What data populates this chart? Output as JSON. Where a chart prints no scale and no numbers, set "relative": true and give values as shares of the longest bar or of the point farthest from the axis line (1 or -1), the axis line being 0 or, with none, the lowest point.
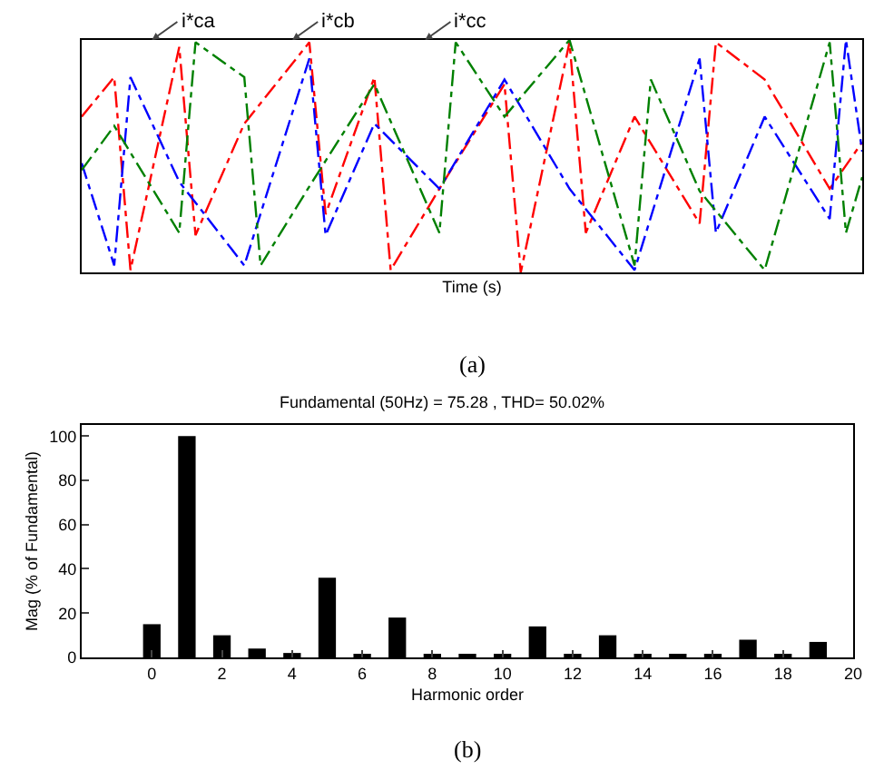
{
  "chart_data": [
    {
      "type": "line",
      "relative": true,
      "xlabel": "Time (s)",
      "categories": [
        null,
        null,
        null,
        null,
        null,
        null,
        null,
        null,
        null,
        null,
        null,
        null,
        null,
        null,
        null,
        null,
        null,
        null,
        null,
        null,
        null,
        null,
        null,
        null,
        null,
        null,
        null,
        null,
        null,
        null,
        null,
        null,
        null,
        null,
        null,
        null,
        null,
        null,
        null,
        null,
        null,
        null,
        null,
        null,
        null,
        null,
        null,
        null,
        null
      ],
      "line_style": "dashed",
      "marker": "none",
      "grid": false,
      "series": [
        {
          "color": "#ff0000",
          "values": [
            0.67,
            null,
            0.84,
            0.01,
            null,
            null,
            0.97,
            0.16,
            null,
            null,
            0.64,
            null,
            null,
            null,
            0.99,
            0.25,
            null,
            null,
            0.84,
            0.01,
            null,
            null,
            0.36,
            null,
            null,
            null,
            0.81,
            0,
            null,
            null,
            0.99,
            0.17,
            null,
            null,
            0.67,
            null,
            null,
            null,
            0.21,
            0.99,
            null,
            null,
            0.83,
            null,
            null,
            null,
            0.36,
            null,
            0.56
          ]
        },
        {
          "color": "#0000ff",
          "values": [
            0.47,
            null,
            0.03,
            0.84,
            null,
            null,
            0.39,
            null,
            null,
            null,
            0.03,
            null,
            null,
            null,
            0.92,
            0.16,
            null,
            null,
            0.64,
            null,
            null,
            null,
            0.36,
            null,
            null,
            null,
            0.83,
            null,
            null,
            null,
            0.36,
            null,
            null,
            null,
            0.01,
            null,
            null,
            null,
            0.92,
            0.17,
            null,
            null,
            0.67,
            null,
            null,
            null,
            0.23,
            1.0,
            0.52
          ]
        },
        {
          "color": "#008000",
          "values": [
            0.44,
            null,
            0.63,
            null,
            null,
            null,
            0.17,
            0.99,
            null,
            null,
            0.84,
            0.03,
            null,
            null,
            0.37,
            null,
            null,
            null,
            0.81,
            null,
            null,
            null,
            0.17,
            0.99,
            null,
            null,
            0.67,
            null,
            null,
            null,
            1.0,
            null,
            null,
            null,
            0.03,
            0.83,
            null,
            null,
            0.35,
            null,
            null,
            null,
            0.01,
            null,
            null,
            null,
            0.99,
            0.17,
            0.41
          ]
        }
      ],
      "annotations": [
        "i*ca",
        "i*cb",
        "i*cc",
        "(a)"
      ]
    },
    {
      "type": "bar",
      "title": "Fundamental (50Hz) = 75.28 , THD= 50.02%",
      "xlabel": "Harmonic order",
      "ylabel": "Mag (% of Fundamental)",
      "x": [
        0,
        1,
        2,
        3,
        4,
        5,
        6,
        7,
        8,
        9,
        10,
        11,
        12,
        13,
        14,
        15,
        16,
        17,
        18,
        19
      ],
      "values": [
        15,
        100,
        10,
        4,
        2,
        36,
        1,
        18,
        1,
        1,
        1,
        14,
        1,
        10,
        1,
        1,
        1,
        8,
        1,
        7
      ],
      "color": "#000000",
      "xlim": [
        -2,
        20
      ],
      "xticks": [
        0,
        2,
        4,
        6,
        8,
        10,
        12,
        14,
        16,
        18,
        20
      ],
      "ylim": [
        0,
        105
      ],
      "yticks": [
        0,
        20,
        40,
        60,
        80,
        100
      ],
      "grid": false,
      "annotations": [
        "(b)"
      ]
    }
  ]
}
